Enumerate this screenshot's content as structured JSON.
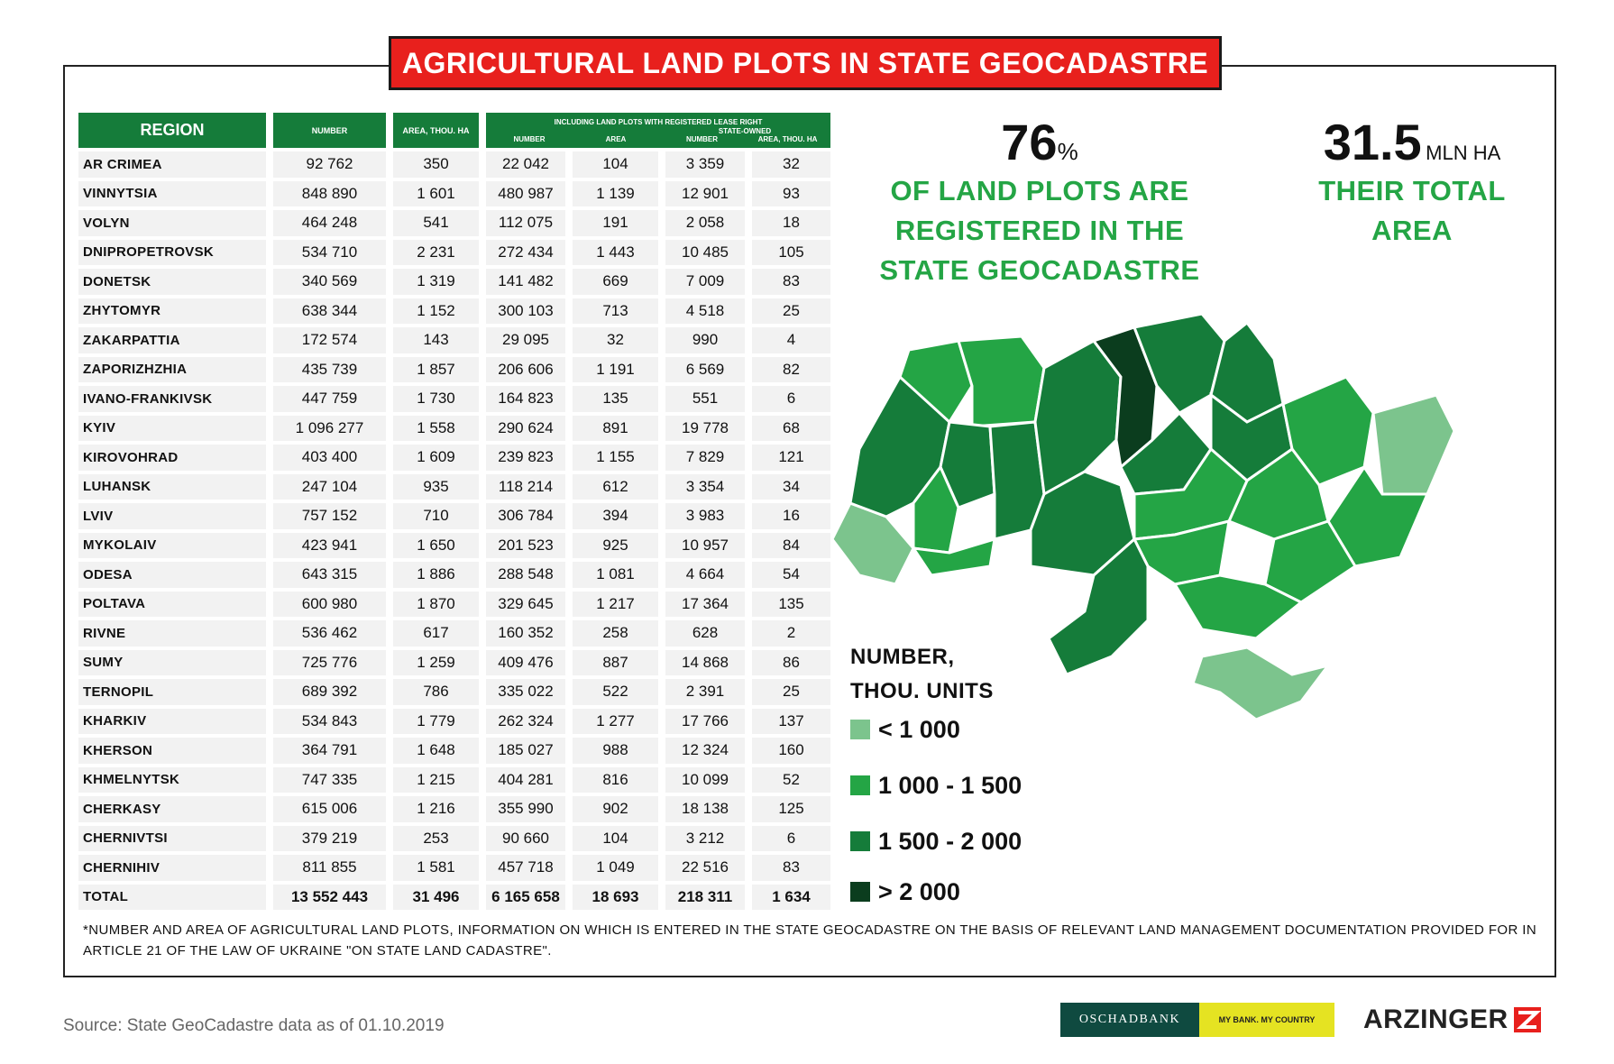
{
  "title": "AGRICULTURAL LAND PLOTS IN STATE GEOCADASTRE",
  "table": {
    "headers": {
      "region": "REGION",
      "number": "NUMBER",
      "area": "AREA, THOU. HA",
      "including": "INCLUDING LAND PLOTS WITH REGISTERED LEASE RIGHT",
      "lease_number": "NUMBER",
      "lease_area": "AREA",
      "state_owned": "STATE-OWNED",
      "so_number": "NUMBER",
      "so_area": "AREA, THOU. HA"
    },
    "rows": [
      [
        "AR CRIMEA",
        "92 762",
        "350",
        "22 042",
        "104",
        "3 359",
        "32"
      ],
      [
        "VINNYTSIA",
        "848 890",
        "1 601",
        "480 987",
        "1 139",
        "12 901",
        "93"
      ],
      [
        "VOLYN",
        "464 248",
        "541",
        "112 075",
        "191",
        "2 058",
        "18"
      ],
      [
        "DNIPROPETROVSK",
        "534 710",
        "2 231",
        "272 434",
        "1 443",
        "10 485",
        "105"
      ],
      [
        "DONETSK",
        "340 569",
        "1 319",
        "141 482",
        "669",
        "7 009",
        "83"
      ],
      [
        "ZHYTOMYR",
        "638 344",
        "1 152",
        "300 103",
        "713",
        "4 518",
        "25"
      ],
      [
        "ZAKARPATTIA",
        "172 574",
        "143",
        "29 095",
        "32",
        "990",
        "4"
      ],
      [
        "ZAPORIZHZHIA",
        "435 739",
        "1 857",
        "206 606",
        "1 191",
        "6 569",
        "82"
      ],
      [
        "IVANO-FRANKIVSK",
        "447 759",
        "1 730",
        "164 823",
        "135",
        "551",
        "6"
      ],
      [
        "KYIV",
        "1 096 277",
        "1 558",
        "290 624",
        "891",
        "19 778",
        "68"
      ],
      [
        "KIROVOHRAD",
        "403 400",
        "1 609",
        "239 823",
        "1 155",
        "7 829",
        "121"
      ],
      [
        "LUHANSK",
        "247 104",
        "935",
        "118 214",
        "612",
        "3 354",
        "34"
      ],
      [
        "LVIV",
        "757 152",
        "710",
        "306 784",
        "394",
        "3 983",
        "16"
      ],
      [
        "MYKOLAIV",
        "423 941",
        "1 650",
        "201 523",
        "925",
        "10 957",
        "84"
      ],
      [
        "ODESA",
        "643 315",
        "1 886",
        "288 548",
        "1 081",
        "4 664",
        "54"
      ],
      [
        "POLTAVA",
        "600 980",
        "1 870",
        "329 645",
        "1 217",
        "17 364",
        "135"
      ],
      [
        "RIVNE",
        "536 462",
        "617",
        "160 352",
        "258",
        "628",
        "2"
      ],
      [
        "SUMY",
        "725 776",
        "1 259",
        "409 476",
        "887",
        "14 868",
        "86"
      ],
      [
        "TERNOPIL",
        "689 392",
        "786",
        "335 022",
        "522",
        "2 391",
        "25"
      ],
      [
        "KHARKIV",
        "534 843",
        "1 779",
        "262 324",
        "1 277",
        "17 766",
        "137"
      ],
      [
        "KHERSON",
        "364 791",
        "1 648",
        "185 027",
        "988",
        "12 324",
        "160"
      ],
      [
        "KHMELNYTSK",
        "747 335",
        "1 215",
        "404 281",
        "816",
        "10 099",
        "52"
      ],
      [
        "CHERKASY",
        "615 006",
        "1 216",
        "355 990",
        "902",
        "18 138",
        "125"
      ],
      [
        "CHERNIVTSI",
        "379 219",
        "253",
        "90 660",
        "104",
        "3 212",
        "6"
      ],
      [
        "CHERNIHIV",
        "811 855",
        "1 581",
        "457 718",
        "1 049",
        "22 516",
        "83"
      ]
    ],
    "total": [
      "TOTAL",
      "13 552 443",
      "31 496",
      "6 165 658",
      "18 693",
      "218 311",
      "1 634"
    ]
  },
  "stats": {
    "share_value": "76",
    "share_unit": "%",
    "share_text": [
      "OF LAND PLOTS ARE",
      "REGISTERED IN THE",
      "STATE GEOCADASTRE"
    ],
    "area_value": "31.5",
    "area_unit": "MLN HA",
    "area_text": [
      "THEIR TOTAL",
      "AREA"
    ]
  },
  "legend": {
    "title": [
      "NUMBER,",
      "THOU. UNITS"
    ],
    "items": [
      {
        "label": "< 1 000",
        "color": "#7cc48d"
      },
      {
        "label": "1 000 - 1 500",
        "color": "#24a545"
      },
      {
        "label": "1 500 - 2 000",
        "color": "#157c3a"
      },
      {
        "label": "> 2 000",
        "color": "#0b3d1e"
      }
    ]
  },
  "map_colors": {
    "light": "#7cc48d",
    "medium": "#24a545",
    "dark": "#157c3a",
    "darkest": "#0b3d1e"
  },
  "footnote": "*NUMBER AND AREA OF AGRICULTURAL LAND PLOTS, INFORMATION ON WHICH IS ENTERED IN THE STATE GEOCADASTRE ON THE BASIS OF RELEVANT LAND MANAGEMENT DOCUMENTATION PROVIDED FOR IN ARTICLE 21 OF THE LAW OF UKRAINE \"ON STATE LAND CADASTRE\".",
  "source": "Source: State GeoCadastre data as of 01.10.2019",
  "logos": {
    "oschadbank": "OSCHADBANK",
    "slogan": "MY BANK. MY COUNTRY",
    "arzinger": "ARZINGER"
  }
}
